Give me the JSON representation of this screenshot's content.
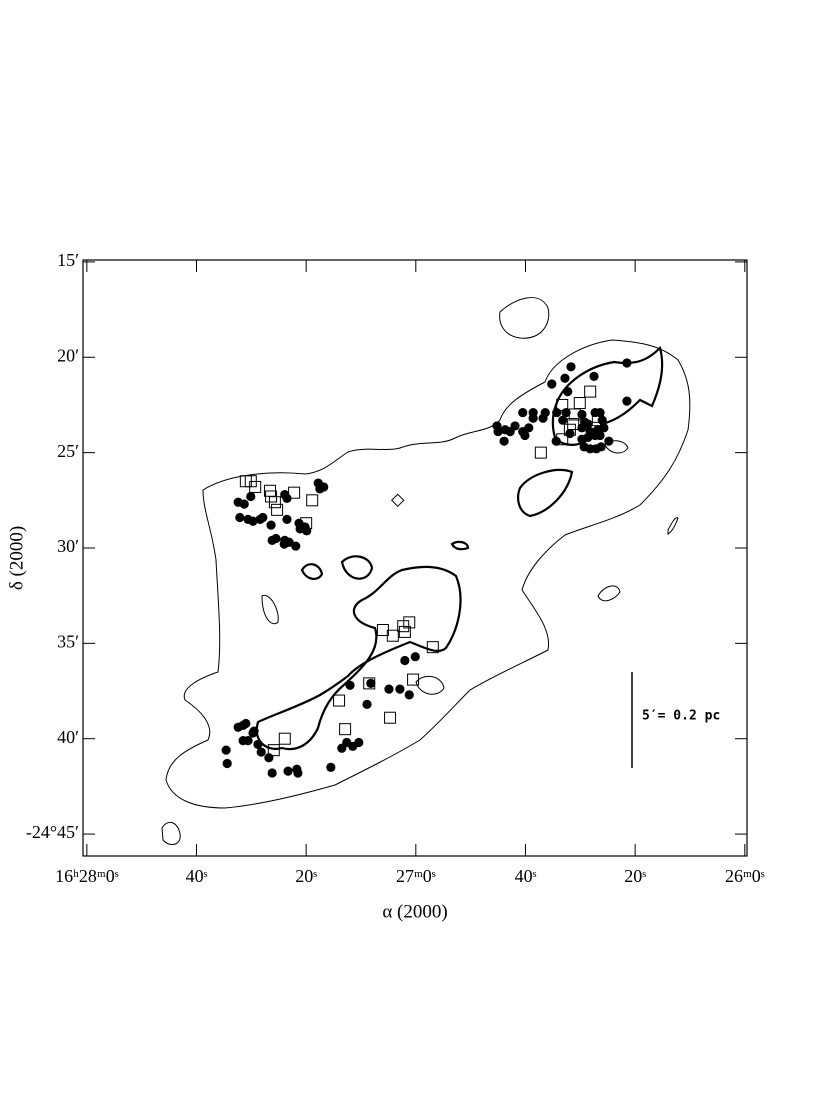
{
  "chart_data": {
    "type": "scatter",
    "x_label": "α (2000)",
    "y_label": "δ (2000)",
    "annotation": "5′= 0.2 pc",
    "xlim": [
      120.7,
      -0.4
    ],
    "ylim": [
      46.15,
      14.9
    ],
    "xticks": [
      {
        "value": 120,
        "label": "16ʰ28ᵐ0ˢ"
      },
      {
        "value": 100,
        "label": "40ˢ"
      },
      {
        "value": 80,
        "label": "20ˢ"
      },
      {
        "value": 60,
        "label": "27ᵐ0ˢ"
      },
      {
        "value": 40,
        "label": "40ˢ"
      },
      {
        "value": 20,
        "label": "20ˢ"
      },
      {
        "value": 0,
        "label": "26ᵐ0ˢ"
      }
    ],
    "yticks": [
      {
        "value": 15,
        "label": "15′"
      },
      {
        "value": 20,
        "label": "20′"
      },
      {
        "value": 25,
        "label": "25′"
      },
      {
        "value": 30,
        "label": "30′"
      },
      {
        "value": 35,
        "label": "35′"
      },
      {
        "value": 40,
        "label": "40′"
      },
      {
        "value": 45,
        "label": "-24°45′"
      }
    ],
    "series": [
      {
        "marker": "circle",
        "color": "#000",
        "x": [
          31.7,
          21.5,
          32.8,
          35.2,
          27.5,
          32.3,
          21.5,
          40.5,
          38.6,
          36.4,
          34.3,
          32.6,
          45.2,
          43.7,
          41.9,
          40.5,
          39.4,
          36.8,
          38.6,
          42.8,
          45.0,
          43.9,
          40.1,
          29.7,
          29.2,
          29.7,
          27.3,
          26.4,
          26.0,
          25.7,
          26.8,
          28.2,
          27.3,
          28.6,
          26.4,
          29.3,
          28.2,
          27.1,
          26.2,
          24.8,
          29.7,
          34.4,
          33.2,
          31.9,
          28.6,
          92.4,
          91.3,
          90.1,
          92.1,
          90.6,
          88.4,
          87.9,
          86.4,
          83.9,
          83.5,
          83.5,
          81.3,
          80.2,
          81.1,
          79.9,
          77.8,
          76.8,
          77.5,
          86.2,
          85.5,
          83.9,
          84.0,
          83.1,
          81.9,
          89.7,
          94.6,
          94.4,
          92.4,
          91.5,
          91.0,
          89.7,
          89.5,
          91.5,
          90.6,
          88.8,
          88.2,
          86.8,
          86.2,
          83.3,
          81.7,
          81.5,
          75.5,
          73.5,
          72.6,
          71.5,
          70.4,
          72.0,
          68.9,
          68.2,
          64.9,
          62.9,
          62.0,
          61.2,
          60.1
        ],
        "values": [
          20.5,
          20.3,
          21.1,
          21.4,
          21.0,
          21.8,
          22.3,
          22.9,
          22.9,
          22.9,
          22.9,
          22.9,
          23.6,
          23.8,
          23.6,
          23.9,
          23.7,
          23.2,
          23.2,
          23.9,
          23.9,
          24.4,
          24.1,
          23.0,
          23.4,
          23.7,
          22.9,
          22.9,
          23.3,
          23.7,
          23.8,
          23.9,
          24.1,
          24.2,
          24.1,
          24.7,
          24.8,
          24.8,
          24.7,
          24.4,
          24.3,
          24.4,
          23.3,
          24.0,
          23.5,
          27.6,
          27.7,
          27.3,
          28.4,
          28.5,
          28.5,
          28.4,
          28.8,
          27.2,
          27.4,
          28.5,
          28.7,
          28.9,
          29.0,
          29.1,
          26.6,
          26.8,
          26.9,
          29.6,
          29.5,
          29.6,
          29.8,
          29.7,
          29.9,
          28.6,
          40.6,
          41.3,
          39.4,
          39.3,
          39.2,
          39.7,
          39.6,
          40.1,
          40.1,
          40.3,
          40.7,
          41.0,
          41.8,
          41.7,
          41.6,
          41.8,
          41.5,
          40.5,
          40.2,
          40.4,
          40.2,
          37.2,
          38.2,
          37.1,
          37.4,
          37.4,
          35.9,
          37.7,
          35.7
        ]
      },
      {
        "marker": "square",
        "color": "#000",
        "x": [
          91.0,
          90.1,
          89.3,
          86.6,
          86.4,
          85.7,
          85.3,
          82.2,
          78.9,
          80.0,
          33.3,
          30.1,
          28.2,
          31.0,
          31.3,
          31.9,
          33.3,
          37.2,
          26.8,
          27.3,
          66.0,
          64.2,
          62.3,
          62.0,
          61.2,
          56.9,
          60.5,
          68.5,
          74.0,
          72.9,
          64.7,
          83.9,
          85.9
        ],
        "values": [
          26.5,
          26.5,
          26.8,
          27.0,
          27.3,
          27.6,
          28.0,
          27.1,
          27.5,
          28.7,
          22.5,
          22.4,
          21.8,
          23.0,
          23.5,
          23.8,
          24.3,
          25.0,
          23.3,
          23.7,
          34.3,
          34.6,
          34.1,
          34.4,
          33.9,
          35.2,
          36.9,
          37.1,
          38.0,
          39.5,
          38.9,
          40.0,
          40.6
        ]
      },
      {
        "marker": "diamond",
        "color": "#000",
        "x": [
          63.3
        ],
        "values": [
          27.5
        ]
      }
    ]
  }
}
